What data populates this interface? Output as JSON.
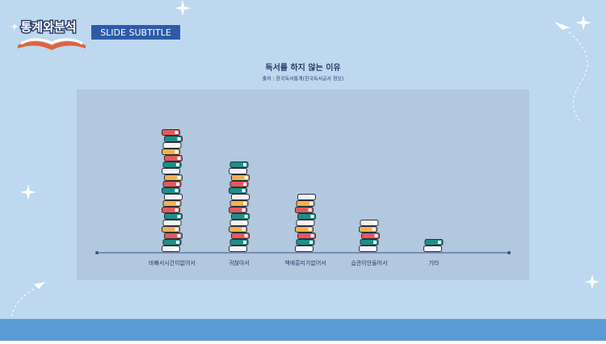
{
  "header": {
    "title": "통계와분석",
    "subtitle": "SLIDE SUBTITLE"
  },
  "chart_data": {
    "type": "pictogram",
    "title": "독서를 하지 않는 이유",
    "subtitle": "출처 : 한국독서통계(한국독서공사 정보)",
    "categories": [
      "바빠서시간이없어서",
      "귀찮아서",
      "책에흥미가없어서",
      "습관이안들어서",
      "기타"
    ],
    "values": [
      19,
      14,
      9,
      5,
      2
    ],
    "colors": [
      "#f4f4f4",
      "#1d9088",
      "#e25b5b",
      "#f3b04d"
    ]
  }
}
